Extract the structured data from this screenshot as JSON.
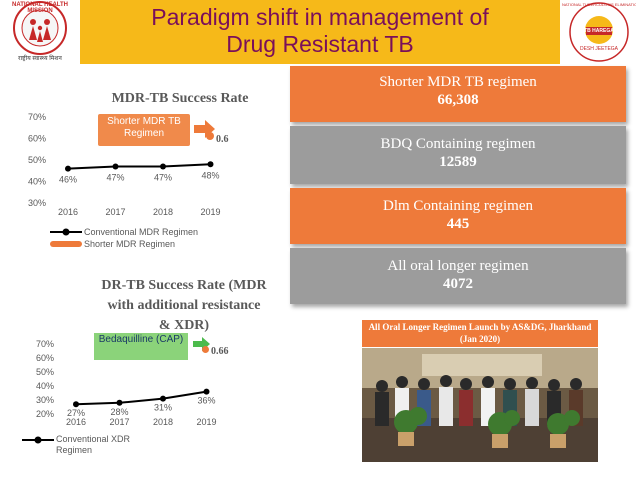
{
  "header": {
    "title_line1": "Paradigm shift in management of",
    "title_line2": "Drug Resistant TB",
    "left_logo": "NATIONAL HEALTH MISSION",
    "left_logo_sub": "राष्ट्रीय स्वास्थ्य मिशन",
    "right_logo": "NATIONAL TUBERCULOSIS ELIMINATION PROGRAMME",
    "right_logo_tag": "TB HAREGA",
    "right_logo_sub": "DESH JEETEGA"
  },
  "chart1": {
    "arrow_value": "0.6",
    "callout": "Shorter MDR TB Regimen",
    "legend": [
      "Conventional MDR Regimen",
      "Shorter MDR Regimen"
    ]
  },
  "chart2": {
    "arrow_value": "0.66",
    "callout": "Bedaquilline (CAP)",
    "legend": [
      "Conventional XDR Regimen"
    ]
  },
  "chart_data": [
    {
      "type": "line",
      "title": "MDR-TB Success Rate",
      "categories": [
        "2016",
        "2017",
        "2018",
        "2019"
      ],
      "series": [
        {
          "name": "Conventional MDR Regimen",
          "values": [
            46,
            47,
            47,
            48
          ]
        }
      ],
      "value_labels": [
        "46%",
        "47%",
        "47%",
        "48%"
      ],
      "ytick_labels": [
        "30%",
        "40%",
        "50%",
        "60%",
        "70%"
      ],
      "ylim": [
        30,
        70
      ]
    },
    {
      "type": "line",
      "title": "DR-TB Success Rate (MDR with additional resistance & XDR)",
      "categories": [
        "2016",
        "2017",
        "2018",
        "2019"
      ],
      "series": [
        {
          "name": "Conventional XDR Regimen",
          "values": [
            27,
            28,
            31,
            36
          ]
        }
      ],
      "value_labels": [
        "27%",
        "28%",
        "31%",
        "36%"
      ],
      "ytick_labels": [
        "20%",
        "30%",
        "40%",
        "50%",
        "60%",
        "70%"
      ],
      "ylim": [
        20,
        70
      ]
    }
  ],
  "stats": [
    {
      "label": "Shorter MDR TB regimen",
      "value": "66,308"
    },
    {
      "label": "BDQ Containing regimen",
      "value": "12589"
    },
    {
      "label": "Dlm Containing regimen",
      "value": "445"
    },
    {
      "label": "All oral longer regimen",
      "value": "4072"
    }
  ],
  "photo": {
    "caption": "All Oral Longer Regimen Launch by AS&DG, Jharkhand (Jan 2020)"
  },
  "colors": {
    "header": "#f6b919",
    "title": "#7a0f5a",
    "orange": "#ee7a3a",
    "grey": "#9c9c9c",
    "green_arrow": "#4cbb4c"
  }
}
